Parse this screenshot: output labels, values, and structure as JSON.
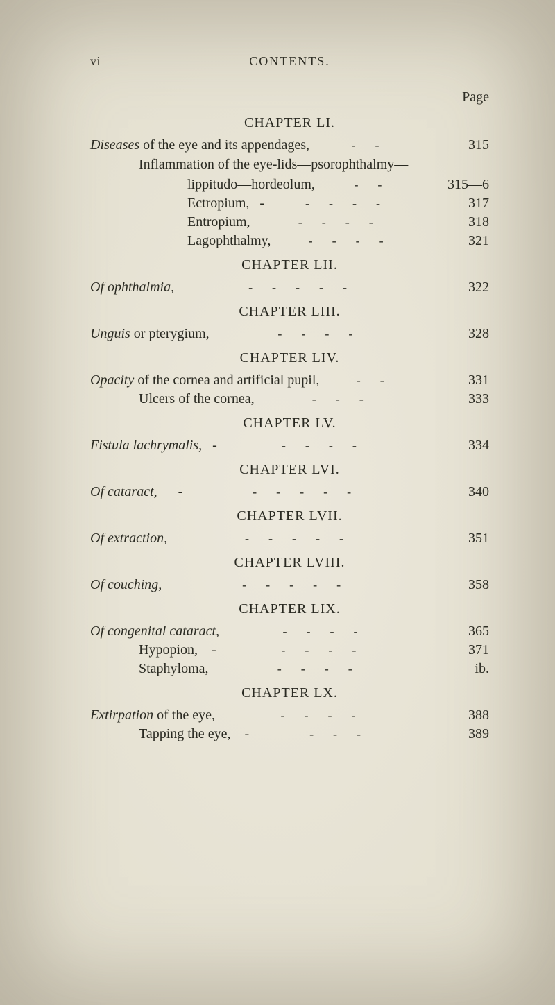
{
  "runningHead": {
    "folio": "vi",
    "title": "CONTENTS."
  },
  "pageLabel": "Page",
  "sections": [
    {
      "chapter": "CHAPTER LI.",
      "entries": [
        {
          "label": "Diseases",
          "rest": " of the eye and its appendages,",
          "page": "315",
          "dashCount": 2
        },
        {
          "plain": "Inflammation of the eye-lids—psorophthalmy—",
          "indent": "sub"
        },
        {
          "rest": "lippitudo—hordeolum,",
          "page": "315—6",
          "indent": "sub2",
          "dashCount": 2
        },
        {
          "rest": "Ectropium,   -",
          "page": "317",
          "indent": "sub2",
          "dashCount": 4
        },
        {
          "rest": "Entropium,",
          "page": "318",
          "indent": "sub2",
          "dashCount": 4
        },
        {
          "rest": "Lagophthalmy,",
          "page": "321",
          "indent": "sub2",
          "dashCount": 4
        }
      ]
    },
    {
      "chapter": "CHAPTER LII.",
      "entries": [
        {
          "label": "Of ophthalmia,",
          "rest": "",
          "page": "322",
          "dashCount": 5
        }
      ]
    },
    {
      "chapter": "CHAPTER LIII.",
      "entries": [
        {
          "label": "Unguis",
          "rest": " or pterygium,",
          "page": "328",
          "dashCount": 4
        }
      ]
    },
    {
      "chapter": "CHAPTER LIV.",
      "entries": [
        {
          "label": "Opacity",
          "rest": " of the cornea and artificial pupil,",
          "page": "331",
          "dashCount": 2
        },
        {
          "rest": "Ulcers of the cornea,",
          "page": "333",
          "indent": "sub",
          "dashCount": 3
        }
      ]
    },
    {
      "chapter": "CHAPTER LV.",
      "entries": [
        {
          "label": "Fistula lachrymalis,",
          "rest": "   -",
          "page": "334",
          "dashCount": 4
        }
      ]
    },
    {
      "chapter": "CHAPTER LVI.",
      "entries": [
        {
          "label": "Of cataract,",
          "rest": "      -",
          "page": "340",
          "dashCount": 5
        }
      ]
    },
    {
      "chapter": "CHAPTER LVII.",
      "entries": [
        {
          "label": "Of extraction,",
          "rest": "",
          "page": "351",
          "dashCount": 5
        }
      ]
    },
    {
      "chapter": "CHAPTER LVIII.",
      "entries": [
        {
          "label": "Of couching,",
          "rest": "",
          "page": "358",
          "dashCount": 5
        }
      ]
    },
    {
      "chapter": "CHAPTER LIX.",
      "entries": [
        {
          "label": "Of congenital cataract,",
          "rest": "",
          "page": "365",
          "dashCount": 4
        },
        {
          "rest": "Hypopion,    -",
          "page": "371",
          "indent": "sub",
          "dashCount": 4
        },
        {
          "rest": "Staphyloma,",
          "page": "ib.",
          "indent": "sub",
          "dashCount": 4
        }
      ]
    },
    {
      "chapter": "CHAPTER LX.",
      "entries": [
        {
          "label": "Extirpation",
          "rest": " of the eye,",
          "page": "388",
          "dashCount": 4
        },
        {
          "rest": "Tapping the eye,    -",
          "page": "389",
          "indent": "sub",
          "dashCount": 3
        }
      ]
    }
  ]
}
